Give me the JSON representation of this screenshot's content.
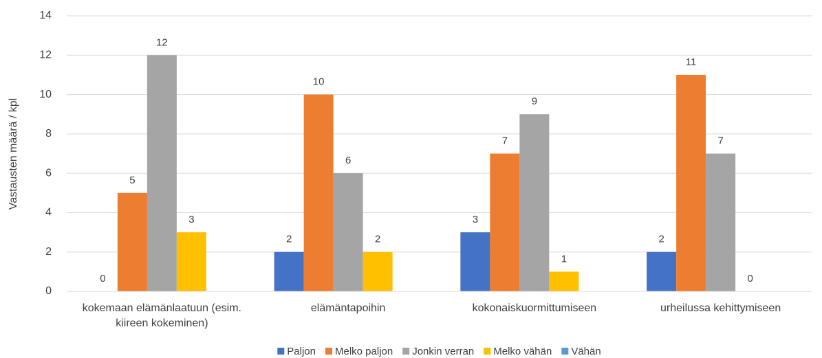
{
  "chart_data": {
    "type": "bar",
    "y_label": "Vastausten määrä / kpl",
    "categories": [
      "kokemaan elämänlaatuun (esim. kiireen kokeminen)",
      "elämäntapoihin",
      "kokonaiskuormittumiseen",
      "urheilussa kehittymiseen"
    ],
    "series": [
      {
        "name": "Paljon",
        "color": "#4472c4",
        "values": [
          0,
          2,
          3,
          2
        ]
      },
      {
        "name": "Melko paljon",
        "color": "#ed7d31",
        "values": [
          5,
          10,
          7,
          11
        ]
      },
      {
        "name": "Jonkin verran",
        "color": "#a5a5a5",
        "values": [
          12,
          6,
          9,
          7
        ]
      },
      {
        "name": "Melko vähän",
        "color": "#ffc000",
        "values": [
          3,
          2,
          1,
          0
        ]
      },
      {
        "name": "Vähän",
        "color": "#5b9bd5",
        "values": [
          null,
          null,
          null,
          null
        ]
      }
    ],
    "ylim": [
      0,
      14
    ],
    "yticks": [
      0,
      2,
      4,
      6,
      8,
      10,
      12,
      14
    ],
    "grid": true,
    "legend": "bottom",
    "data_labels": true
  }
}
